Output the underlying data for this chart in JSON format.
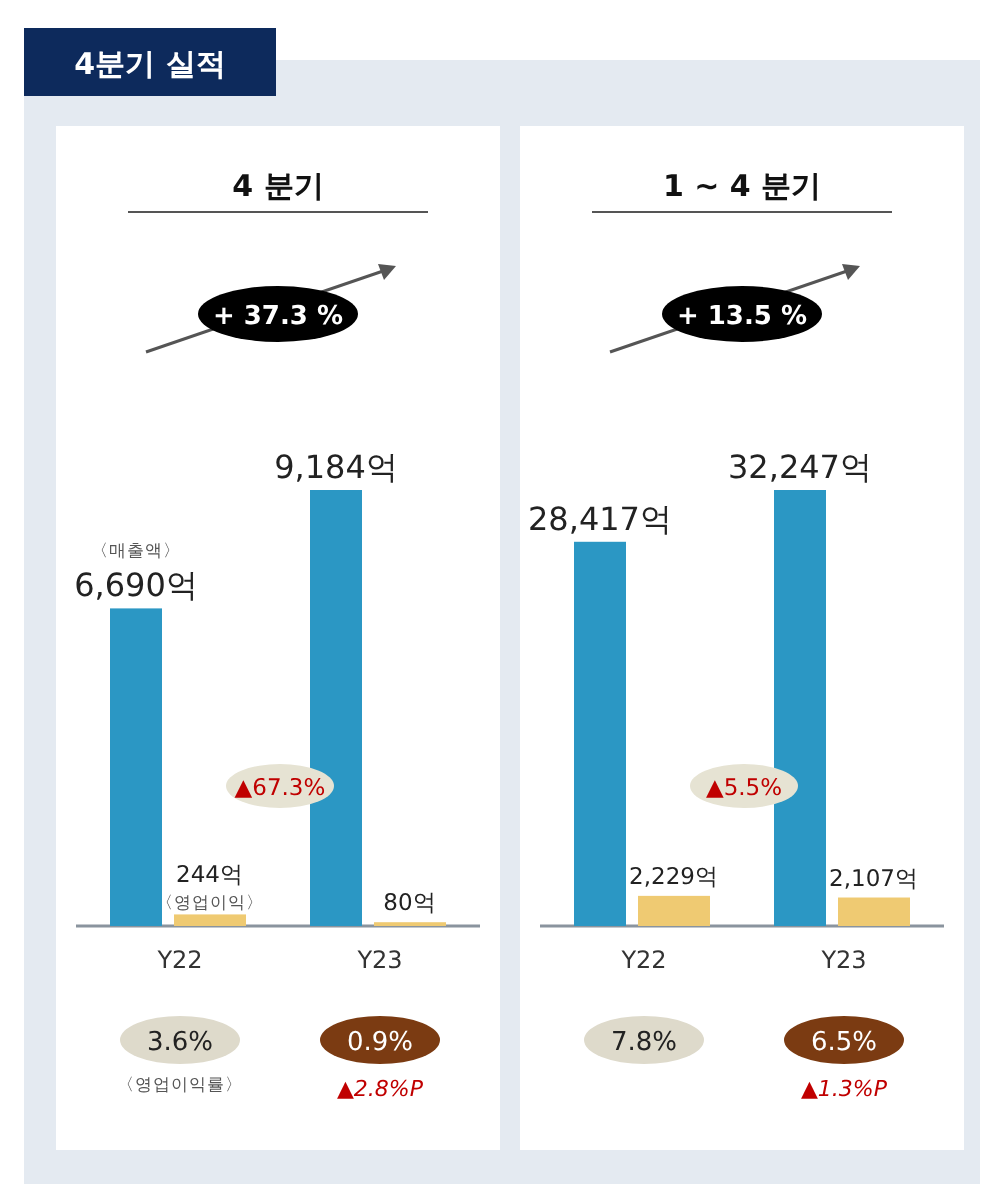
{
  "chart_data": [
    {
      "type": "other",
      "title": "4분기 실적"
    },
    {
      "type": "bar",
      "title": "4 분기",
      "categories": [
        "Y22",
        "Y23"
      ],
      "series": [
        {
          "name": "〈매출액〉",
          "color": "#2b97c4",
          "values": [
            6690,
            9184
          ],
          "value_labels": [
            "6,690억",
            "9,184억"
          ]
        },
        {
          "name": "〈영업이익〉",
          "color": "#efca72",
          "values": [
            244,
            80
          ],
          "value_labels": [
            "244억",
            "80억"
          ]
        }
      ],
      "annotations": [
        "+ 37.3 %",
        "▲67.3%",
        "3.6%",
        "0.9%",
        "▲2.8%P",
        "〈영업이익률〉"
      ]
    },
    {
      "type": "bar",
      "title": "1 ~ 4 분기",
      "categories": [
        "Y22",
        "Y23"
      ],
      "series": [
        {
          "color": "#2b97c4",
          "values": [
            28417,
            32247
          ],
          "value_labels": [
            "28,417억",
            "32,247억"
          ]
        },
        {
          "color": "#efca72",
          "values": [
            2229,
            2107
          ],
          "value_labels": [
            "2,229억",
            "2,107억"
          ]
        }
      ],
      "annotations": [
        "+ 13.5 %",
        "▲5.5%",
        "7.8%",
        "6.5%",
        "▲1.3%P"
      ]
    }
  ]
}
